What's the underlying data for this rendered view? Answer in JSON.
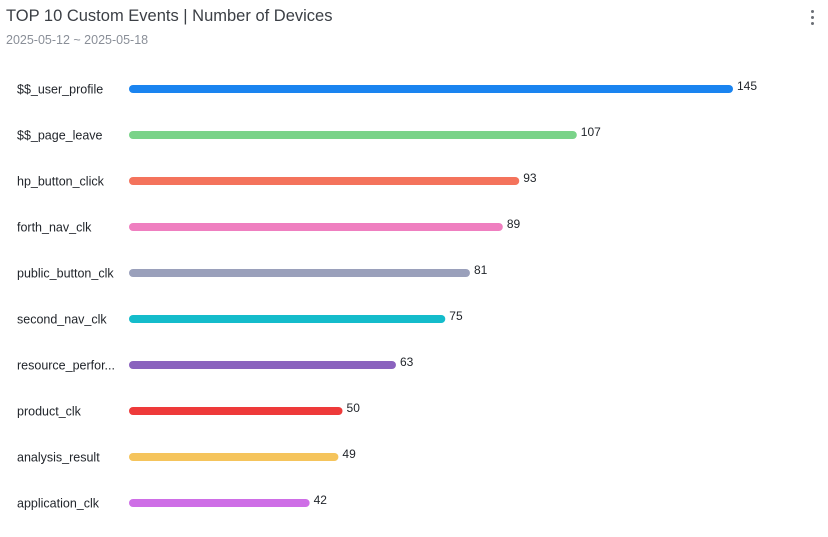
{
  "header": {
    "title": "TOP 10 Custom Events | Number of Devices",
    "subtitle": "2025-05-12 ~ 2025-05-18",
    "menu_icon": "more-vertical-icon"
  },
  "chart_data": {
    "type": "bar",
    "orientation": "horizontal",
    "title": "TOP 10 Custom Events | Number of Devices",
    "subtitle": "2025-05-12 ~ 2025-05-18",
    "categories": [
      "$$_user_profile",
      "$$_page_leave",
      "hp_button_click",
      "forth_nav_clk",
      "public_button_clk",
      "second_nav_clk",
      "resource_perfor...",
      "product_clk",
      "analysis_result",
      "application_clk"
    ],
    "values": [
      145,
      107,
      93,
      89,
      81,
      75,
      63,
      50,
      49,
      42
    ],
    "colors": [
      "#1a84f0",
      "#7ad389",
      "#f4735c",
      "#ef7fc0",
      "#9aa0bb",
      "#14bccb",
      "#8a62be",
      "#ee3a3a",
      "#f5c45c",
      "#ce6ee6"
    ],
    "xlim": [
      0,
      145
    ],
    "grid": false,
    "legend": "none",
    "data_labels": true
  }
}
